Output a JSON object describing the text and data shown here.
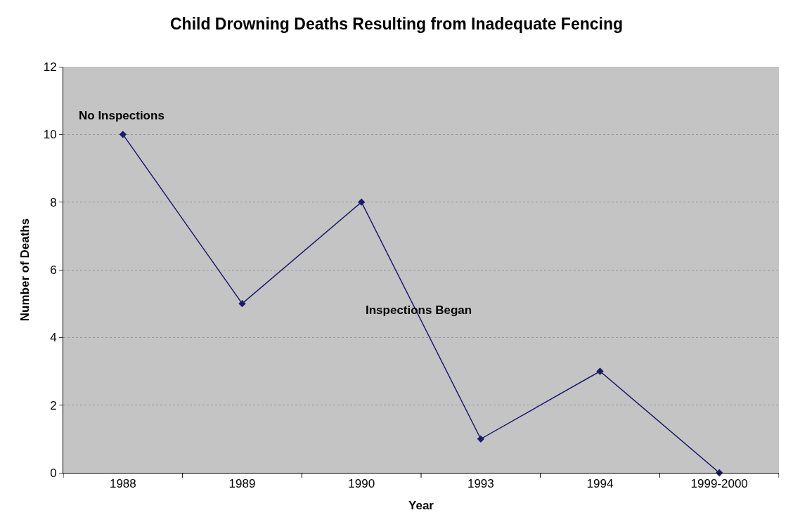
{
  "chart_data": {
    "type": "line",
    "title": "Child Drowning Deaths Resulting from Inadequate Fencing",
    "xlabel": "Year",
    "ylabel": "Number of Deaths",
    "categories": [
      "1988",
      "1989",
      "1990",
      "1993",
      "1994",
      "1999-2000"
    ],
    "series": [
      {
        "color": "#1c1c6b",
        "values": [
          10,
          5,
          8,
          1,
          3,
          0
        ]
      }
    ],
    "ylim": [
      0,
      12
    ],
    "yticks": [
      0,
      2,
      4,
      6,
      8,
      10,
      12
    ],
    "grid": "y",
    "marker": "diamond",
    "line_style": "solid",
    "annotations": [
      "No Inspections",
      "Inspections Began"
    ]
  }
}
